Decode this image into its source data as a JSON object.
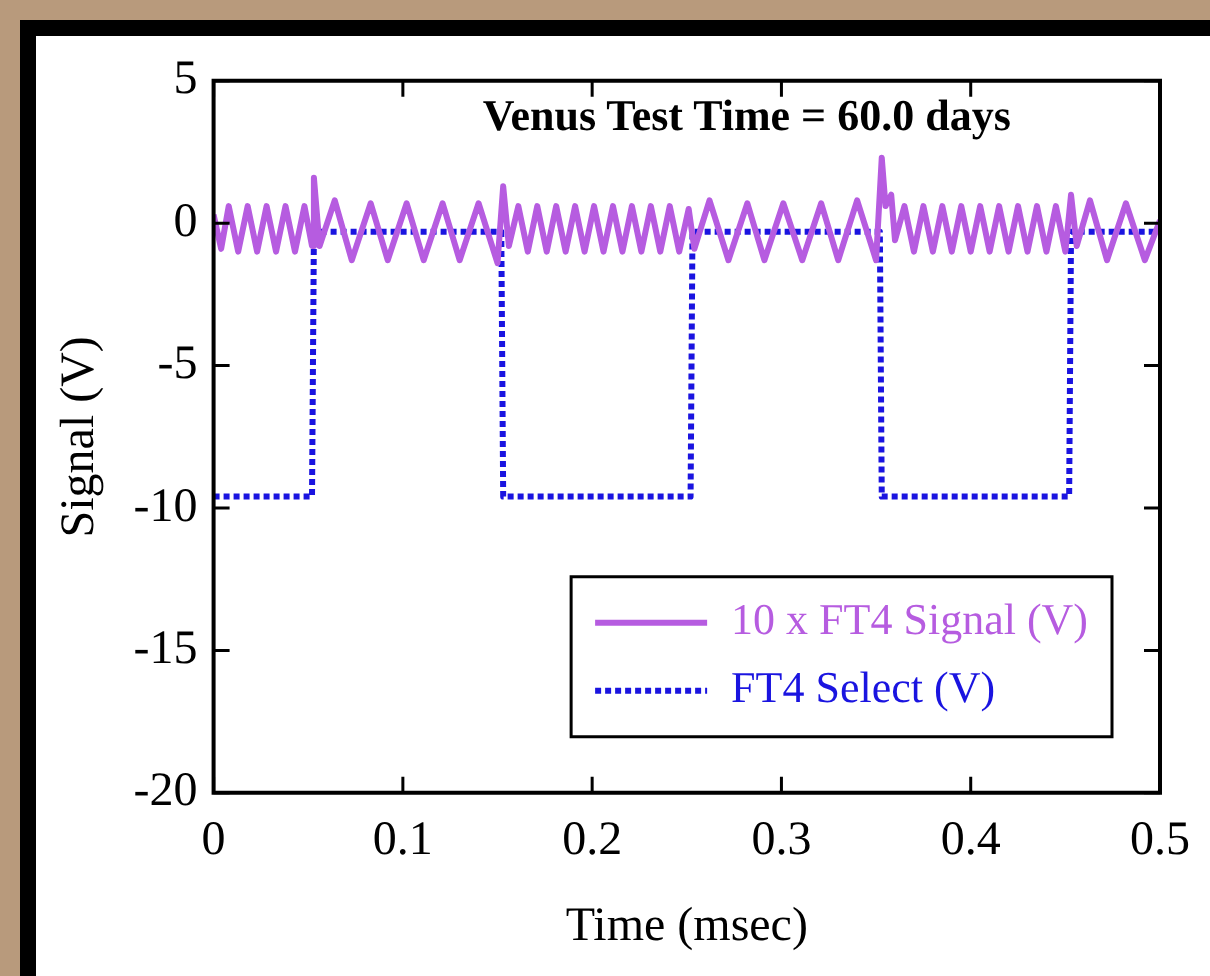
{
  "chart_data": {
    "type": "line",
    "title": "Venus Test Time = 60.0 days",
    "xlabel": "Time (msec)",
    "ylabel": "Signal (V)",
    "xlim": [
      0,
      0.5
    ],
    "xticks": [
      0,
      0.1,
      0.2,
      0.3,
      0.4,
      0.5
    ],
    "ylim": [
      -20,
      5
    ],
    "yticks": [
      5,
      0,
      -5,
      -10,
      -15,
      -20
    ],
    "grid": false,
    "legend": "bottom right",
    "marker": "none",
    "series": [
      {
        "name": "10 x FT4 Signal (V)",
        "color": "#b65ce0",
        "line_style": "solid",
        "x": [
          0,
          0.004,
          0.008,
          0.013,
          0.018,
          0.023,
          0.028,
          0.033,
          0.038,
          0.043,
          0.048,
          0.052,
          0.053,
          0.056,
          0.064,
          0.073,
          0.083,
          0.092,
          0.102,
          0.111,
          0.121,
          0.13,
          0.14,
          0.15,
          0.153,
          0.156,
          0.161,
          0.166,
          0.171,
          0.176,
          0.181,
          0.186,
          0.191,
          0.196,
          0.201,
          0.206,
          0.211,
          0.216,
          0.221,
          0.226,
          0.231,
          0.236,
          0.241,
          0.246,
          0.251,
          0.254,
          0.262,
          0.272,
          0.282,
          0.291,
          0.301,
          0.311,
          0.321,
          0.33,
          0.34,
          0.35,
          0.353,
          0.355,
          0.358,
          0.36,
          0.365,
          0.37,
          0.375,
          0.38,
          0.385,
          0.39,
          0.395,
          0.4,
          0.405,
          0.41,
          0.415,
          0.42,
          0.425,
          0.43,
          0.435,
          0.44,
          0.445,
          0.45,
          0.453,
          0.456,
          0.463,
          0.472,
          0.482,
          0.492,
          0.5
        ],
        "values": [
          0.3,
          -0.9,
          0.6,
          -1.0,
          0.6,
          -1.0,
          0.6,
          -1.0,
          0.6,
          -1.0,
          0.6,
          -0.8,
          1.6,
          -0.8,
          0.8,
          -1.3,
          0.7,
          -1.3,
          0.7,
          -1.3,
          0.7,
          -1.3,
          0.7,
          -1.4,
          1.3,
          -0.8,
          0.6,
          -1.0,
          0.6,
          -1.0,
          0.6,
          -1.0,
          0.6,
          -1.0,
          0.6,
          -1.0,
          0.6,
          -1.0,
          0.6,
          -1.0,
          0.6,
          -1.0,
          0.6,
          -1.0,
          0.5,
          -0.9,
          0.8,
          -1.3,
          0.7,
          -1.3,
          0.7,
          -1.3,
          0.7,
          -1.3,
          0.8,
          -1.3,
          2.3,
          0.6,
          1.0,
          -0.6,
          0.6,
          -1.0,
          0.6,
          -1.0,
          0.6,
          -1.0,
          0.6,
          -1.0,
          0.6,
          -1.0,
          0.6,
          -1.0,
          0.6,
          -1.0,
          0.6,
          -1.0,
          0.6,
          -1.0,
          1.0,
          -0.8,
          0.8,
          -1.3,
          0.7,
          -1.3,
          0.1
        ]
      },
      {
        "name": "FT4 Select (V)",
        "color": "#1a14e0",
        "line_style": "dotted",
        "x": [
          0,
          0.052,
          0.053,
          0.152,
          0.153,
          0.252,
          0.253,
          0.352,
          0.353,
          0.452,
          0.453,
          0.5
        ],
        "values": [
          -9.6,
          -9.6,
          -0.3,
          -0.3,
          -9.6,
          -9.6,
          -0.3,
          -0.3,
          -9.6,
          -9.6,
          -0.3,
          -0.3
        ]
      }
    ]
  }
}
